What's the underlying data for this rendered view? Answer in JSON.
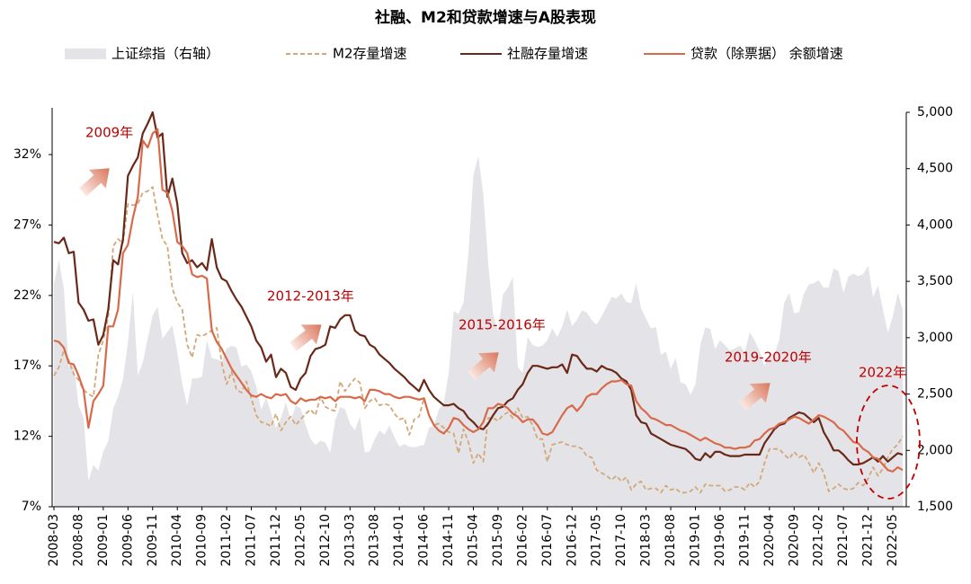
{
  "chart_data": {
    "type": "line",
    "title": "社融、M2和贷款增速与A股表现",
    "categories": [
      "2008-03",
      null,
      null,
      null,
      null,
      "2008-08",
      null,
      null,
      null,
      null,
      "2009-01",
      null,
      null,
      null,
      null,
      "2009-06",
      null,
      null,
      null,
      null,
      "2009-11",
      null,
      null,
      null,
      null,
      "2010-04",
      null,
      null,
      null,
      null,
      "2010-09",
      null,
      null,
      null,
      null,
      "2011-02",
      null,
      null,
      null,
      null,
      "2011-07",
      null,
      null,
      null,
      null,
      "2011-12",
      null,
      null,
      null,
      null,
      "2012-05",
      null,
      null,
      null,
      null,
      "2012-10",
      null,
      null,
      null,
      null,
      "2013-03",
      null,
      null,
      null,
      null,
      "2013-08",
      null,
      null,
      null,
      null,
      "2014-01",
      null,
      null,
      null,
      null,
      "2014-06",
      null,
      null,
      null,
      null,
      "2014-11",
      null,
      null,
      null,
      null,
      "2015-04",
      null,
      null,
      null,
      null,
      "2015-09",
      null,
      null,
      null,
      null,
      "2016-02",
      null,
      null,
      null,
      null,
      "2016-07",
      null,
      null,
      null,
      null,
      "2016-12",
      null,
      null,
      null,
      null,
      "2017-05",
      null,
      null,
      null,
      null,
      "2017-10",
      null,
      null,
      null,
      null,
      "2018-03",
      null,
      null,
      null,
      null,
      "2018-08",
      null,
      null,
      null,
      null,
      "2019-01",
      null,
      null,
      null,
      null,
      "2019-06",
      null,
      null,
      null,
      null,
      "2019-11",
      null,
      null,
      null,
      null,
      "2020-04",
      null,
      null,
      null,
      null,
      "2020-09",
      null,
      null,
      null,
      null,
      "2021-02",
      null,
      null,
      null,
      null,
      "2021-07",
      null,
      null,
      null,
      null,
      "2021-12",
      null,
      null,
      null,
      null,
      "2022-05",
      null,
      null
    ],
    "series": [
      {
        "name": "上证综指（右轴）",
        "type": "area",
        "axis": "y2",
        "color": "#e4e4e8",
        "values": [
          3473,
          3693,
          3433,
          2736,
          2776,
          2397,
          2293,
          1729,
          1871,
          1821,
          1991,
          2082,
          2373,
          2477,
          2633,
          2959,
          3412,
          2667,
          2779,
          2996,
          3195,
          3277,
          2989,
          3051,
          3110,
          2870,
          2592,
          2398,
          2638,
          2639,
          2656,
          2979,
          2820,
          2808,
          2791,
          2905,
          2928,
          2911,
          2743,
          2762,
          2701,
          2568,
          2359,
          2468,
          2333,
          2199,
          2292,
          2428,
          2263,
          2397,
          2373,
          2225,
          2103,
          2047,
          2086,
          2069,
          1980,
          2269,
          2385,
          2366,
          2237,
          2178,
          2301,
          1979,
          1994,
          2098,
          2175,
          2141,
          2220,
          2116,
          2033,
          2056,
          2033,
          2026,
          2039,
          2048,
          2202,
          2217,
          2364,
          2420,
          2683,
          3235,
          3210,
          3310,
          3748,
          4442,
          4612,
          4277,
          3664,
          3206,
          3053,
          3383,
          3445,
          3539,
          2738,
          2688,
          3004,
          2938,
          2917,
          2930,
          2979,
          3085,
          3005,
          3100,
          3250,
          3104,
          3159,
          3242,
          3223,
          3155,
          3117,
          3192,
          3273,
          3361,
          3349,
          3393,
          3317,
          3307,
          3481,
          3259,
          3169,
          3082,
          3095,
          2847,
          2876,
          2725,
          2821,
          2603,
          2588,
          2494,
          2585,
          2941,
          3091,
          3078,
          2899,
          2979,
          2933,
          2886,
          2905,
          2929,
          2872,
          3050,
          2977,
          2880,
          2750,
          2860,
          2852,
          2985,
          3310,
          3396,
          3218,
          3225,
          3392,
          3473,
          3483,
          3509,
          3442,
          3447,
          3615,
          3591,
          3397,
          3544,
          3568,
          3547,
          3564,
          3640,
          3361,
          3462,
          3252,
          3047,
          3186,
          3399,
          3253
        ]
      },
      {
        "name": "M2存量增速",
        "type": "line",
        "dash": true,
        "color": "#d2a878",
        "values": [
          16.3,
          16.9,
          18.1,
          17.4,
          16.4,
          16,
          15.3,
          15,
          14.8,
          17.8,
          18.8,
          20.5,
          25.5,
          26,
          25.7,
          28.5,
          28.4,
          28.5,
          29.3,
          29.4,
          29.7,
          27.7,
          26,
          25.5,
          22.5,
          21.5,
          21,
          18.5,
          17.6,
          19.2,
          19.1,
          19.3,
          19.5,
          19.7,
          17.2,
          15.7,
          16.6,
          15.3,
          15.1,
          15.9,
          14.7,
          13.5,
          13,
          12.9,
          12.7,
          13.6,
          12.4,
          13,
          13.4,
          12.8,
          13.2,
          13.6,
          13.9,
          13.5,
          14.8,
          14.1,
          13.9,
          13.8,
          15.9,
          15.2,
          15.7,
          16.1,
          15.8,
          14,
          14.5,
          14.7,
          14.2,
          14.3,
          14.2,
          13.6,
          13.2,
          13.3,
          12.1,
          13.2,
          13.4,
          14.7,
          13.5,
          12.8,
          12.9,
          12.6,
          12.3,
          12.2,
          10.8,
          12.5,
          11.6,
          10.1,
          10.8,
          10.2,
          13.3,
          13.3,
          13.1,
          13.5,
          13.7,
          13.3,
          14,
          13.3,
          13.4,
          12.8,
          11.8,
          11.8,
          10.2,
          11.4,
          11.5,
          11.6,
          11.4,
          11.3,
          11.3,
          11.1,
          10.6,
          10.5,
          9.6,
          9.4,
          9.2,
          8.9,
          9.2,
          8.8,
          9.1,
          8.2,
          8.6,
          8.8,
          8.2,
          8.3,
          8.3,
          8,
          8.5,
          8.2,
          8.3,
          8,
          8,
          8.1,
          8.4,
          8,
          8.6,
          8.5,
          8.5,
          8.5,
          8.1,
          8.2,
          8.4,
          8.4,
          8.2,
          8.7,
          8.4,
          8.8,
          10.1,
          11.1,
          11.1,
          11.1,
          10.7,
          10.4,
          10.9,
          10.5,
          10.7,
          10.1,
          9.4,
          10.1,
          9.4,
          8.1,
          8.3,
          8.6,
          8.3,
          8.2,
          8.3,
          8.7,
          8.5,
          9,
          9.8,
          9.2,
          9.7,
          10.5,
          11.1,
          11.4,
          12
        ]
      },
      {
        "name": "社融存量增速",
        "type": "line",
        "color": "#6a2818",
        "values": [
          25.8,
          25.7,
          26.1,
          25,
          25.1,
          21.5,
          21,
          20.2,
          20.3,
          18.5,
          19.2,
          21,
          24.5,
          24.2,
          26,
          30.5,
          31.2,
          31.8,
          33.5,
          34.2,
          35,
          33.2,
          33.5,
          29,
          30.3,
          28.5,
          25,
          24.3,
          24.5,
          24,
          24.3,
          23.8,
          26,
          24,
          23.2,
          23,
          22.3,
          21.7,
          21.2,
          20.5,
          19.8,
          18.8,
          18.3,
          17.3,
          17.8,
          16.2,
          16.8,
          16.5,
          15.5,
          15.3,
          16.1,
          16.5,
          17.7,
          18.2,
          18.3,
          18.5,
          19.8,
          19.7,
          20.3,
          20.6,
          20.6,
          19.5,
          19.2,
          19.1,
          18.5,
          18.3,
          17.8,
          17.5,
          17.2,
          16.8,
          16.5,
          16.2,
          15.8,
          15.5,
          15.2,
          16,
          15.3,
          14.8,
          14.5,
          14.2,
          14.2,
          14.3,
          14,
          13.8,
          13.3,
          13,
          12.6,
          12.5,
          12.9,
          13.5,
          14,
          14.1,
          14.5,
          14.7,
          15.3,
          15.7,
          16.5,
          17,
          17,
          16.9,
          16.8,
          16.9,
          16.9,
          17.1,
          16.5,
          17.8,
          17.7,
          17.2,
          16.8,
          16.8,
          16.6,
          17,
          16.8,
          16.7,
          16.5,
          16.1,
          15.9,
          15.3,
          13.5,
          13,
          12.9,
          12.2,
          12,
          11.8,
          11.6,
          11.4,
          11.3,
          11.2,
          11.1,
          10.8,
          10.4,
          10.3,
          10.8,
          10.5,
          10.9,
          10.9,
          10.7,
          10.6,
          10.6,
          10.6,
          10.7,
          10.7,
          10.7,
          10.7,
          11.5,
          12,
          12.5,
          12.8,
          12.9,
          13.3,
          13.5,
          13.7,
          13.6,
          13.3,
          13,
          13.3,
          12.3,
          11.7,
          11,
          11,
          10.7,
          10.3,
          10,
          10,
          10.1,
          10.3,
          10.5,
          10.2,
          10.6,
          10.2,
          10.5,
          10.8,
          10.7
        ]
      },
      {
        "name": "贷款（除票据） 余额增速",
        "type": "line",
        "color": "#d86a4a",
        "values": [
          18.8,
          18.7,
          18.3,
          17.2,
          17.1,
          16.3,
          15.3,
          12.6,
          14.5,
          15,
          15.6,
          19.8,
          19.8,
          21,
          25,
          25.6,
          27.5,
          29,
          33,
          32.5,
          33.5,
          33.8,
          29.5,
          29.3,
          28,
          25.8,
          25.5,
          25,
          23.5,
          23.3,
          23.4,
          23.2,
          19.5,
          18.7,
          18.2,
          17.5,
          16.8,
          16.3,
          15.8,
          15.3,
          14.9,
          14.8,
          15,
          14.8,
          14.7,
          15,
          14.9,
          15,
          14.5,
          14.3,
          14.7,
          14.5,
          14.6,
          14.6,
          14.8,
          14.7,
          14.8,
          14.5,
          14.8,
          14.8,
          14.8,
          14.7,
          14.8,
          14.5,
          15.3,
          15.3,
          15.2,
          15,
          15,
          14.8,
          14.7,
          14.8,
          14.8,
          14.7,
          14.6,
          14.7,
          13.5,
          12.8,
          12.4,
          12.2,
          12.6,
          13.3,
          13.2,
          12.8,
          12.5,
          12.3,
          12.5,
          13,
          14,
          14,
          14.3,
          14.2,
          14,
          13.6,
          13.4,
          13,
          13.2,
          13.2,
          12.8,
          12.2,
          12.1,
          12.3,
          12.9,
          13.5,
          14,
          14.2,
          13.8,
          14.2,
          14.8,
          15,
          15,
          15.4,
          15.7,
          15.9,
          15.9,
          16,
          15.7,
          15.6,
          14.5,
          14,
          13.7,
          13.3,
          13.2,
          13,
          12.8,
          12.8,
          12.6,
          12.4,
          12.3,
          12.1,
          11.9,
          11.7,
          11.9,
          11.7,
          11.5,
          11.4,
          11.2,
          11.2,
          11.1,
          11.2,
          11.2,
          11.3,
          11.7,
          11.8,
          12.2,
          12.5,
          12.6,
          12.9,
          13,
          13.2,
          13.4,
          13.3,
          13.1,
          12.9,
          13.2,
          13.5,
          13.4,
          13.2,
          13,
          12.6,
          12.4,
          12,
          11.6,
          11.5,
          11.1,
          10.9,
          10.5,
          10.4,
          10,
          9.6,
          9.5,
          9.8,
          9.6
        ]
      }
    ],
    "ylim": [
      7,
      35
    ],
    "yticks": [
      {
        "value": 7,
        "label": "7%"
      },
      {
        "value": 12,
        "label": "12%"
      },
      {
        "value": 17,
        "label": "17%"
      },
      {
        "value": 22,
        "label": "22%"
      },
      {
        "value": 27,
        "label": "27%"
      },
      {
        "value": 32,
        "label": "32%"
      }
    ],
    "y2lim": [
      1500,
      5000
    ],
    "y2ticks": [
      {
        "value": 1500,
        "label": "1,500"
      },
      {
        "value": 2000,
        "label": "2,000"
      },
      {
        "value": 2500,
        "label": "2,500"
      },
      {
        "value": 3000,
        "label": "3,000"
      },
      {
        "value": 3500,
        "label": "3,500"
      },
      {
        "value": 4000,
        "label": "4,000"
      },
      {
        "value": 4500,
        "label": "4,500"
      },
      {
        "value": 5000,
        "label": "5,000"
      }
    ],
    "annotations": [
      "2009年",
      "2012-2013年",
      "2015-2016年",
      "2019-2020年",
      "2022年"
    ],
    "annotation_color": "#c00000"
  }
}
